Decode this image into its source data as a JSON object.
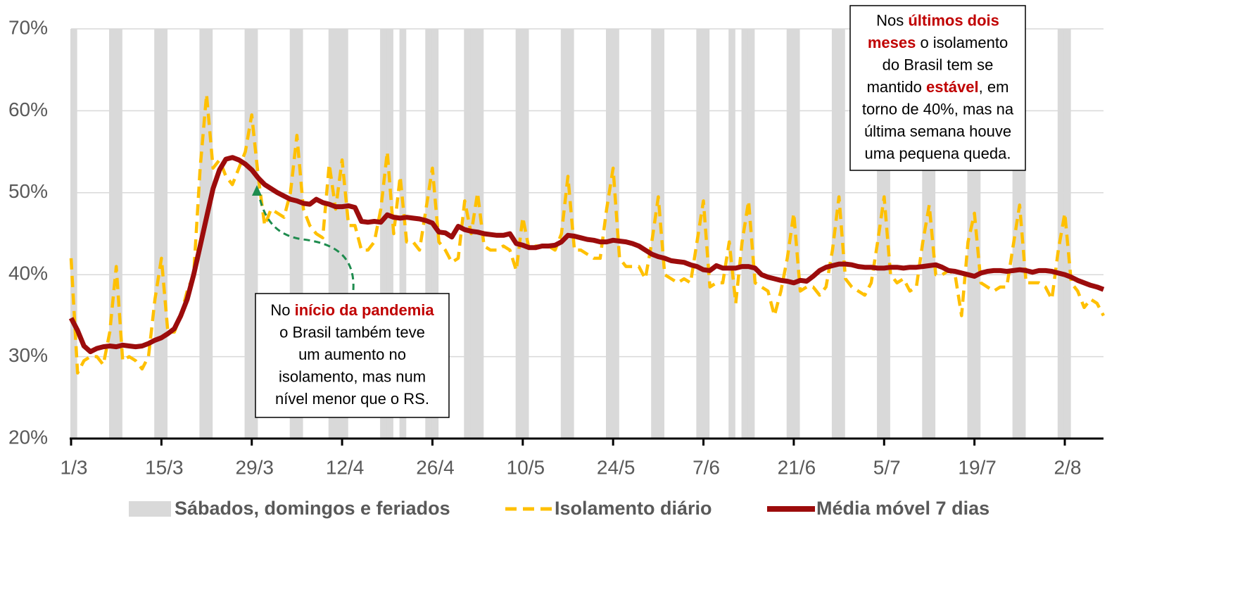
{
  "chart_data": {
    "type": "line",
    "categories": [
      "1/3",
      null,
      null,
      null,
      null,
      null,
      null,
      null,
      null,
      null,
      null,
      null,
      null,
      null,
      "15/3",
      null,
      null,
      null,
      null,
      null,
      null,
      null,
      null,
      null,
      null,
      null,
      null,
      null,
      "29/3",
      null,
      null,
      null,
      null,
      null,
      null,
      null,
      null,
      null,
      null,
      null,
      null,
      null,
      "12/4",
      null,
      null,
      null,
      null,
      null,
      null,
      null,
      null,
      null,
      null,
      null,
      null,
      null,
      "26/4",
      null,
      null,
      null,
      null,
      null,
      null,
      null,
      null,
      null,
      null,
      null,
      null,
      null,
      "10/5",
      null,
      null,
      null,
      null,
      null,
      null,
      null,
      null,
      null,
      null,
      null,
      null,
      null,
      "24/5",
      null,
      null,
      null,
      null,
      null,
      null,
      null,
      null,
      null,
      null,
      null,
      null,
      null,
      "7/6",
      null,
      null,
      null,
      null,
      null,
      null,
      null,
      null,
      null,
      null,
      null,
      null,
      null,
      "21/6",
      null,
      null,
      null,
      null,
      null,
      null,
      null,
      null,
      null,
      null,
      null,
      null,
      null,
      "5/7",
      null,
      null,
      null,
      null,
      null,
      null,
      null,
      null,
      null,
      null,
      null,
      null,
      null,
      "19/7",
      null,
      null,
      null,
      null,
      null,
      null,
      null,
      null,
      null,
      null,
      null,
      null,
      null,
      "2/8",
      null,
      null,
      null,
      null,
      null,
      null
    ],
    "series": [
      {
        "name": "Sábados, domingos e feriados",
        "color": "#d9d9d9",
        "style": "band",
        "shaded_days": [
          0,
          6,
          7,
          13,
          14,
          20,
          21,
          27,
          28,
          34,
          35,
          40,
          41,
          42,
          48,
          49,
          51,
          55,
          56,
          61,
          62,
          63,
          69,
          70,
          76,
          77,
          83,
          84,
          90,
          91,
          97,
          98,
          102,
          104,
          105,
          111,
          112,
          118,
          119,
          125,
          126,
          132,
          133,
          139,
          140,
          146,
          147,
          153,
          154
        ]
      },
      {
        "name": "Isolamento diário",
        "color": "#ffc000",
        "style": "dashed",
        "values": [
          42,
          28,
          29.5,
          30,
          30,
          29,
          33,
          41,
          29.5,
          30,
          29.5,
          28.5,
          30,
          37,
          42,
          33,
          33,
          35,
          38,
          40,
          53,
          62,
          53,
          54,
          52,
          51,
          53,
          55,
          59.5,
          52,
          46,
          48,
          47.5,
          47,
          50,
          57,
          48,
          46,
          45,
          44.5,
          53.5,
          48,
          54,
          46,
          46,
          43,
          43,
          44,
          48,
          55,
          45,
          52,
          44,
          44,
          43,
          48,
          53,
          44,
          43,
          41.5,
          42,
          49,
          45,
          50,
          43.5,
          43,
          43,
          43.5,
          43,
          40.5,
          47,
          43,
          43.5,
          43.5,
          43.5,
          43,
          45,
          52,
          43,
          43,
          42.5,
          42,
          42,
          48,
          53,
          42,
          41,
          41,
          41,
          39.5,
          44,
          49.5,
          40,
          39.5,
          39,
          39.5,
          39,
          44,
          49,
          38.5,
          39,
          39,
          44,
          36.5,
          44,
          49,
          39,
          38.5,
          38,
          35,
          38,
          42,
          47.5,
          38,
          38.5,
          38.5,
          37.5,
          38.5,
          43,
          49.5,
          39.5,
          38.5,
          38,
          37.5,
          39,
          44,
          49.5,
          40,
          39,
          39.5,
          38,
          38.5,
          44,
          48.5,
          40,
          40,
          40.5,
          40,
          35,
          44,
          47.5,
          39,
          38.5,
          38,
          38.5,
          38.5,
          43.5,
          48.5,
          39,
          39,
          39,
          38.5,
          37,
          43,
          47.5,
          39,
          38,
          36,
          37,
          36.5,
          35
        ]
      },
      {
        "name": "Média móvel 7 dias",
        "color": "#9c0c0c",
        "style": "solid",
        "values": [
          34.7,
          33.2,
          31.3,
          30.6,
          31.0,
          31.2,
          31.3,
          31.2,
          31.4,
          31.3,
          31.2,
          31.3,
          31.6,
          32.0,
          32.3,
          32.8,
          33.4,
          35.0,
          37.0,
          40.0,
          43.5,
          47,
          50.5,
          52.8,
          54.1,
          54.3,
          54.0,
          53.5,
          52.8,
          51.8,
          51.0,
          50.5,
          50.0,
          49.6,
          49.2,
          49.0,
          48.7,
          48.6,
          49.2,
          48.8,
          48.6,
          48.3,
          48.3,
          48.4,
          48.2,
          46.5,
          46.4,
          46.5,
          46.4,
          47.3,
          47.0,
          46.9,
          47.0,
          46.9,
          46.8,
          46.6,
          46.3,
          45.2,
          45.1,
          44.6,
          45.9,
          45.5,
          45.3,
          45.2,
          45.0,
          44.9,
          44.8,
          44.8,
          45.0,
          43.8,
          43.6,
          43.3,
          43.3,
          43.5,
          43.5,
          43.6,
          44.0,
          44.8,
          44.7,
          44.5,
          44.3,
          44.2,
          44.0,
          44.0,
          44.2,
          44.1,
          44.0,
          43.8,
          43.5,
          43.0,
          42.5,
          42.2,
          42.0,
          41.7,
          41.6,
          41.5,
          41.2,
          41.0,
          40.6,
          40.5,
          41.1,
          40.8,
          40.8,
          40.8,
          41.0,
          41.0,
          40.8,
          40.0,
          39.7,
          39.5,
          39.3,
          39.2,
          39.0,
          39.3,
          39.2,
          39.8,
          40.5,
          40.9,
          41.1,
          41.3,
          41.3,
          41.2,
          41.0,
          40.9,
          40.9,
          40.8,
          40.8,
          40.9,
          40.9,
          40.8,
          40.9,
          40.9,
          41.0,
          41.1,
          41.2,
          40.9,
          40.5,
          40.4,
          40.2,
          40.0,
          39.8,
          40.2,
          40.4,
          40.5,
          40.5,
          40.4,
          40.5,
          40.6,
          40.5,
          40.3,
          40.5,
          40.5,
          40.4,
          40.2,
          40.0,
          39.7,
          39.3,
          39.0,
          38.7,
          38.5,
          38.2
        ]
      }
    ],
    "ylim": [
      20,
      70
    ],
    "yticks": [
      {
        "value": 20,
        "label": "20%"
      },
      {
        "value": 30,
        "label": "30%"
      },
      {
        "value": 40,
        "label": "40%"
      },
      {
        "value": 50,
        "label": "50%"
      },
      {
        "value": 60,
        "label": "60%"
      },
      {
        "value": 70,
        "label": "70%"
      }
    ],
    "grid": true,
    "legend": "bottom",
    "annotations": [
      {
        "lines": [
          [
            {
              "t": "No "
            },
            {
              "t": "início da pandemia",
              "em": true
            }
          ],
          [
            {
              "t": "o Brasil também teve"
            }
          ],
          [
            {
              "t": "um aumento no"
            }
          ],
          [
            {
              "t": "isolamento, mas num"
            }
          ],
          [
            {
              "t": "nível menor que o RS."
            }
          ]
        ]
      },
      {
        "lines": [
          [
            {
              "t": "Nos "
            },
            {
              "t": "últimos dois",
              "em": true
            }
          ],
          [
            {
              "t": "meses",
              "em": true
            },
            {
              "t": " o isolamento"
            }
          ],
          [
            {
              "t": "do Brasil tem se"
            }
          ],
          [
            {
              "t": "mantido "
            },
            {
              "t": "estável",
              "em": true
            },
            {
              "t": ", em"
            }
          ],
          [
            {
              "t": "torno de 40%, mas na"
            }
          ],
          [
            {
              "t": "última semana houve"
            }
          ],
          [
            {
              "t": "uma pequena queda."
            }
          ]
        ]
      }
    ]
  }
}
